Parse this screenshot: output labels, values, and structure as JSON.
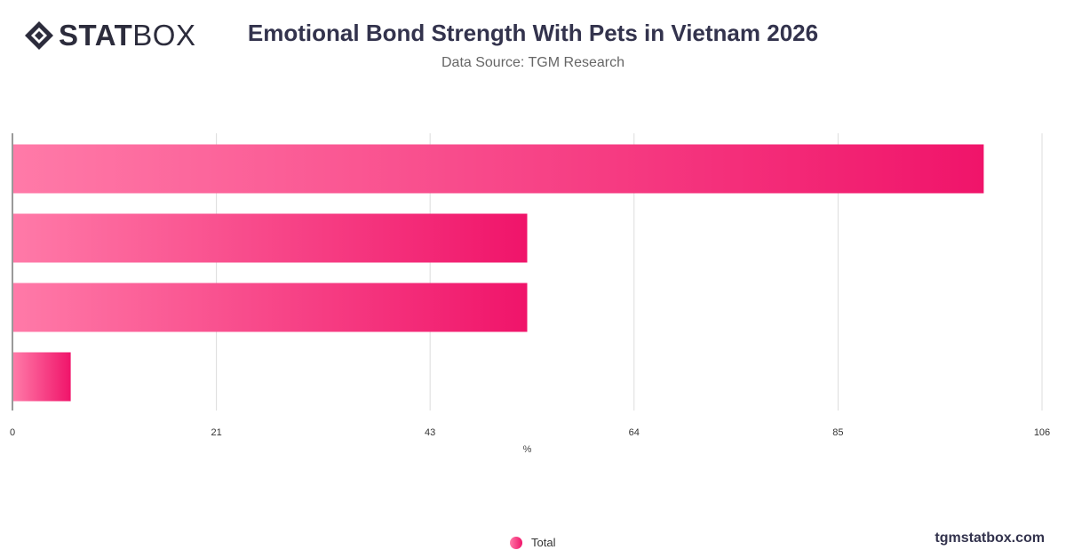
{
  "brand": {
    "logo_bold": "STAT",
    "logo_light": "BOX",
    "credit": "tgmstatbox.com"
  },
  "colors": {
    "bar_start": "#ff7aa8",
    "bar_end": "#f0146a",
    "grid": "#dcdcdc",
    "axis": "#333333"
  },
  "chart_data": {
    "type": "bar",
    "orientation": "horizontal",
    "title": "Emotional Bond Strength With Pets in Vietnam 2026",
    "subtitle": "Data Source: TGM Research",
    "xlabel": "%",
    "xlim": [
      0,
      106
    ],
    "xticks": [
      0,
      21,
      43,
      64,
      85,
      106
    ],
    "grid": true,
    "legend_position": "bottom",
    "categories": [
      "",
      "",
      "",
      ""
    ],
    "series": [
      {
        "name": "Total",
        "values": [
          100,
          53,
          53,
          6
        ]
      }
    ]
  }
}
